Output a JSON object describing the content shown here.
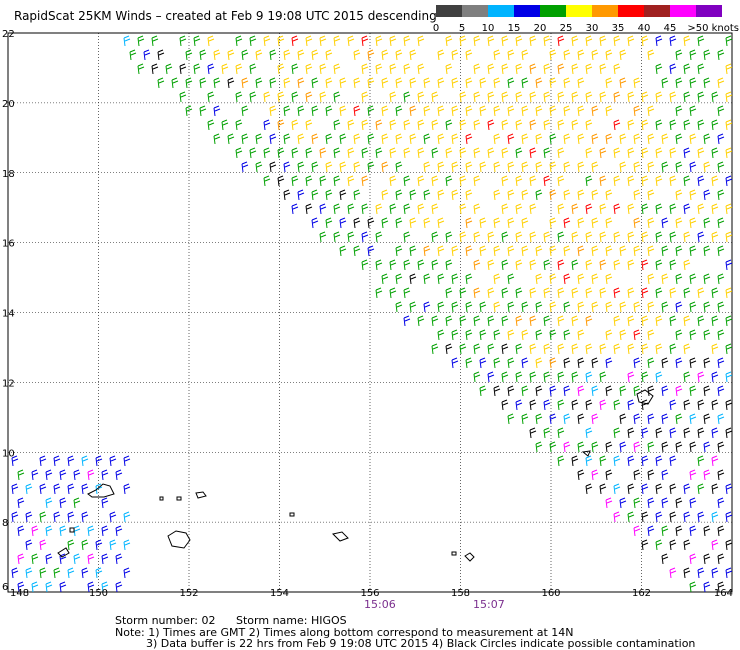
{
  "title": "RapidScat 25KM Winds – created at Feb  9 19:08 UTC 2015 descending",
  "scale": {
    "labels": [
      "0",
      "5",
      "10",
      "15",
      "20",
      "25",
      "30",
      "35",
      "40",
      "45",
      ">50 knots"
    ],
    "colors": [
      "#404040",
      "#7f7f7f",
      "#00b4ff",
      "#0000e6",
      "#00a000",
      "#ffff00",
      "#ff9900",
      "#ff0000",
      "#a02020",
      "#ff00ff",
      "#8000c0"
    ]
  },
  "axes": {
    "lon_ticks": [
      "148",
      "150",
      "152",
      "154",
      "156",
      "158",
      "160",
      "162",
      "164"
    ],
    "lat_ticks": [
      "22",
      "20",
      "18",
      "16",
      "14",
      "12",
      "10",
      "8",
      "6"
    ],
    "lon_range": [
      148,
      164
    ],
    "lat_range": [
      6,
      22
    ]
  },
  "times": [
    {
      "label": "15:06",
      "lon": 156
    },
    {
      "label": "15:07",
      "lon": 158.6
    }
  ],
  "storm": {
    "number_text": "Storm number: 02",
    "name_text": "Storm name: HIGOS"
  },
  "notes": {
    "line1": "Note: 1) Times are GMT  2) Times along bottom correspond to measurement at 14N",
    "line2": "3) Data buffer is 22 hrs from Feb  9 19:08 UTC 2015  4) Black Circles indicate possible contamination"
  }
}
